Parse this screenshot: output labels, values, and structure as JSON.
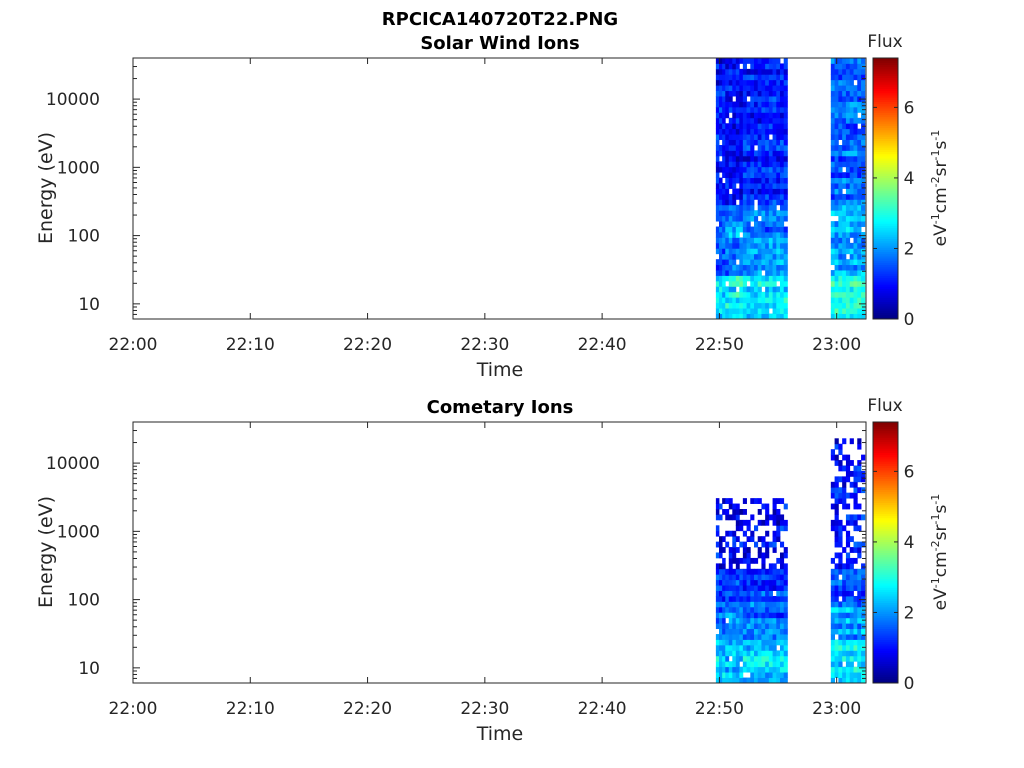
{
  "figure": {
    "title": "RPCICA140720T22.PNG"
  },
  "palette": {
    "colormap": [
      "#00007f",
      "#0000ff",
      "#007fff",
      "#00ffff",
      "#7fff7f",
      "#ffff00",
      "#ff7f00",
      "#ff0000",
      "#7f0000"
    ]
  },
  "chart_data": [
    {
      "type": "heatmap",
      "title": "Solar Wind Ions",
      "xlabel": "Time",
      "ylabel": "Energy (eV)",
      "x_ticks": [
        "22:00",
        "22:10",
        "22:20",
        "22:30",
        "22:40",
        "22:50",
        "23:00"
      ],
      "y_ticks": [
        "10",
        "100",
        "1000",
        "10000"
      ],
      "y_scale": "log",
      "ylim": [
        6,
        40000
      ],
      "x_range_minutes": [
        0,
        62.5
      ],
      "colorbar": {
        "title": "Flux",
        "label": "eV-1cm-2sr-1s-1",
        "ticks": [
          "0",
          "2",
          "4",
          "6"
        ],
        "range": [
          0,
          7.4
        ]
      },
      "segments": [
        {
          "start_min": 49.7,
          "end_min": 50.5,
          "seed": 11,
          "bands": [
            {
              "e_min": 6,
              "e_max": 25,
              "flux": 2.5
            },
            {
              "e_min": 25,
              "e_max": 90,
              "flux": 1.6
            },
            {
              "e_min": 90,
              "e_max": 300,
              "flux": 1.7
            },
            {
              "e_min": 300,
              "e_max": 40000,
              "flux": 1.0
            }
          ]
        },
        {
          "start_min": 50.5,
          "end_min": 52.0,
          "seed": 23,
          "bands": [
            {
              "e_min": 6,
              "e_max": 25,
              "flux": 2.7
            },
            {
              "e_min": 25,
              "e_max": 90,
              "flux": 1.7
            },
            {
              "e_min": 90,
              "e_max": 300,
              "flux": 2.0
            },
            {
              "e_min": 300,
              "e_max": 40000,
              "flux": 1.0
            }
          ]
        },
        {
          "start_min": 52.0,
          "end_min": 55.8,
          "seed": 37,
          "bands": [
            {
              "e_min": 6,
              "e_max": 25,
              "flux": 2.6
            },
            {
              "e_min": 25,
              "e_max": 90,
              "flux": 1.9
            },
            {
              "e_min": 90,
              "e_max": 300,
              "flux": 1.7
            },
            {
              "e_min": 300,
              "e_max": 40000,
              "flux": 1.1
            }
          ]
        },
        {
          "start_min": 59.5,
          "end_min": 62.4,
          "seed": 53,
          "bands": [
            {
              "e_min": 6,
              "e_max": 25,
              "flux": 3.0
            },
            {
              "e_min": 25,
              "e_max": 90,
              "flux": 2.1
            },
            {
              "e_min": 90,
              "e_max": 300,
              "flux": 2.2
            },
            {
              "e_min": 300,
              "e_max": 40000,
              "flux": 1.6
            }
          ]
        }
      ]
    },
    {
      "type": "heatmap",
      "title": "Cometary Ions",
      "xlabel": "Time",
      "ylabel": "Energy (eV)",
      "x_ticks": [
        "22:00",
        "22:10",
        "22:20",
        "22:30",
        "22:40",
        "22:50",
        "23:00"
      ],
      "y_ticks": [
        "10",
        "100",
        "1000",
        "10000"
      ],
      "y_scale": "log",
      "ylim": [
        6,
        40000
      ],
      "x_range_minutes": [
        0,
        62.5
      ],
      "colorbar": {
        "title": "Flux",
        "label": "eV-1cm-2sr-1s-1",
        "ticks": [
          "0",
          "2",
          "4",
          "6"
        ],
        "range": [
          0,
          7.4
        ]
      },
      "segments": [
        {
          "start_min": 49.7,
          "end_min": 50.5,
          "seed": 71,
          "bands": [
            {
              "e_min": 6,
              "e_max": 25,
              "flux": 2.4
            },
            {
              "e_min": 25,
              "e_max": 90,
              "flux": 1.7
            },
            {
              "e_min": 90,
              "e_max": 300,
              "flux": 1.2
            },
            {
              "e_min": 300,
              "e_max": 3000,
              "flux": 0.9
            }
          ]
        },
        {
          "start_min": 50.5,
          "end_min": 52.0,
          "seed": 83,
          "bands": [
            {
              "e_min": 6,
              "e_max": 25,
              "flux": 2.3
            },
            {
              "e_min": 25,
              "e_max": 90,
              "flux": 1.8
            },
            {
              "e_min": 90,
              "e_max": 300,
              "flux": 1.4
            },
            {
              "e_min": 300,
              "e_max": 3000,
              "flux": 0.9
            }
          ]
        },
        {
          "start_min": 52.0,
          "end_min": 55.8,
          "seed": 97,
          "bands": [
            {
              "e_min": 6,
              "e_max": 25,
              "flux": 2.4
            },
            {
              "e_min": 25,
              "e_max": 90,
              "flux": 1.6
            },
            {
              "e_min": 90,
              "e_max": 300,
              "flux": 1.3
            },
            {
              "e_min": 300,
              "e_max": 3000,
              "flux": 0.9
            }
          ]
        },
        {
          "start_min": 59.5,
          "end_min": 62.4,
          "seed": 109,
          "bands": [
            {
              "e_min": 6,
              "e_max": 25,
              "flux": 2.6
            },
            {
              "e_min": 25,
              "e_max": 90,
              "flux": 2.0
            },
            {
              "e_min": 90,
              "e_max": 300,
              "flux": 1.5
            },
            {
              "e_min": 300,
              "e_max": 25000,
              "flux": 1.0
            }
          ]
        }
      ]
    }
  ]
}
